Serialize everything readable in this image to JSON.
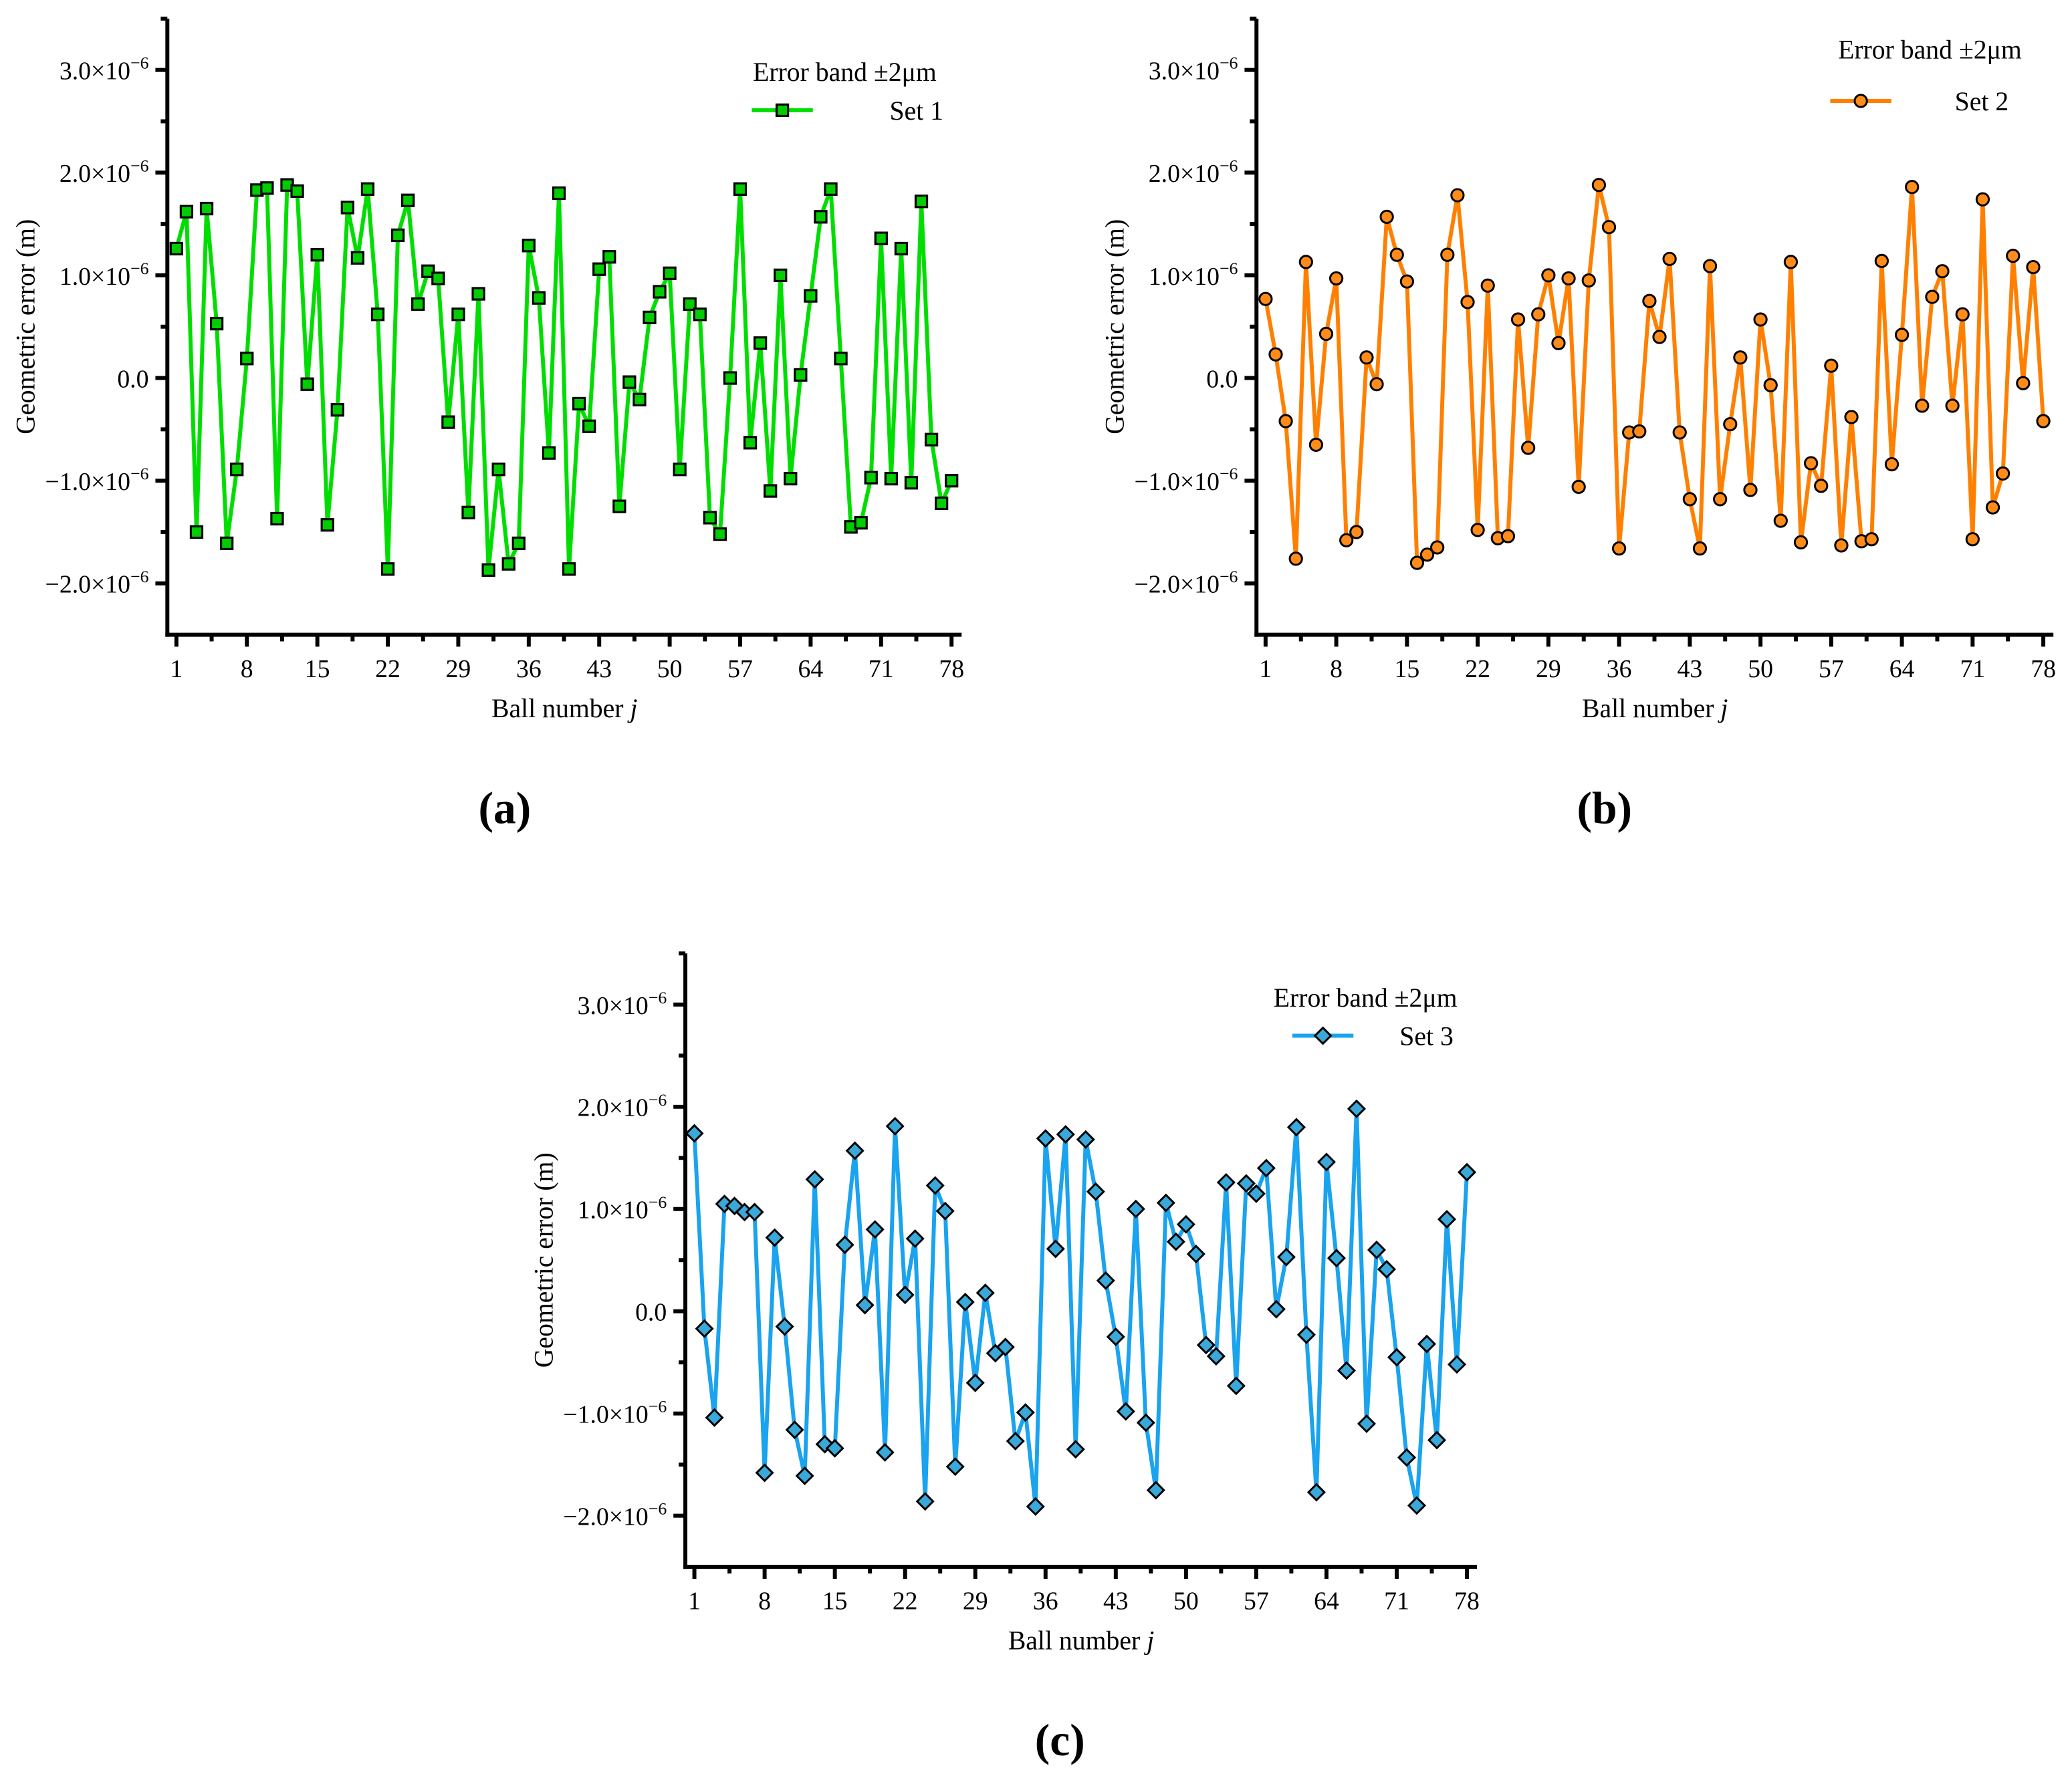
{
  "chart_data": [
    {
      "panel_label": "(a)",
      "type": "line",
      "xlabel": "Ball number",
      "xlabel_var": "j",
      "ylabel": "Geometric error (m)",
      "xlim": [
        0.1,
        79
      ],
      "ylim": [
        -2.5e-06,
        3.5e-06
      ],
      "xticks": [
        1,
        8,
        15,
        22,
        29,
        36,
        43,
        50,
        57,
        64,
        71,
        78
      ],
      "yticks": [
        {
          "value": -2e-06,
          "base": "−2.0×10",
          "exp": "−6"
        },
        {
          "value": -1e-06,
          "base": "−1.0×10",
          "exp": "−6"
        },
        {
          "value": 0,
          "base": "0.0",
          "exp": ""
        },
        {
          "value": 1e-06,
          "base": "1.0×10",
          "exp": "−6"
        },
        {
          "value": 2e-06,
          "base": "2.0×10",
          "exp": "−6"
        },
        {
          "value": 3e-06,
          "base": "3.0×10",
          "exp": "−6"
        }
      ],
      "legend_title": "Error band ±2μm",
      "legend_position": "top-right",
      "grid": false,
      "series": [
        {
          "name": "Set 1",
          "color": "#00dd00",
          "marker_fill": "#00cc00",
          "marker": "square",
          "x_start": 1,
          "values_e6": [
            1.26,
            1.62,
            -1.5,
            1.65,
            0.53,
            -1.61,
            -0.89,
            0.19,
            1.83,
            1.85,
            -1.37,
            1.88,
            1.82,
            -0.06,
            1.2,
            -1.43,
            -0.31,
            1.66,
            1.17,
            1.84,
            0.62,
            -1.86,
            1.39,
            1.73,
            0.72,
            1.04,
            0.97,
            -0.43,
            0.62,
            -1.31,
            0.82,
            -1.87,
            -0.89,
            -1.81,
            -1.61,
            1.29,
            0.78,
            -0.73,
            1.8,
            -1.86,
            -0.25,
            -0.47,
            1.06,
            1.18,
            -1.25,
            -0.04,
            -0.21,
            0.59,
            0.84,
            1.02,
            -0.89,
            0.72,
            0.62,
            -1.36,
            -1.52,
            0.0,
            1.84,
            -0.63,
            0.34,
            -1.1,
            1.0,
            -0.98,
            0.03,
            0.8,
            1.57,
            1.84,
            0.19,
            -1.45,
            -1.41,
            -0.97,
            1.36,
            -0.98,
            1.26,
            -1.02,
            1.72,
            -0.6,
            -1.22,
            -1.0
          ]
        }
      ]
    },
    {
      "panel_label": "(b)",
      "type": "line",
      "xlabel": "Ball number",
      "xlabel_var": "j",
      "ylabel": "Geometric error (m)",
      "xlim": [
        0.1,
        79
      ],
      "ylim": [
        -2.5e-06,
        3.5e-06
      ],
      "xticks": [
        1,
        8,
        15,
        22,
        29,
        36,
        43,
        50,
        57,
        64,
        71,
        78
      ],
      "yticks": [
        {
          "value": -2e-06,
          "base": "−2.0×10",
          "exp": "−6"
        },
        {
          "value": -1e-06,
          "base": "−1.0×10",
          "exp": "−6"
        },
        {
          "value": 0,
          "base": "0.0",
          "exp": ""
        },
        {
          "value": 1e-06,
          "base": "1.0×10",
          "exp": "−6"
        },
        {
          "value": 2e-06,
          "base": "2.0×10",
          "exp": "−6"
        },
        {
          "value": 3e-06,
          "base": "3.0×10",
          "exp": "−6"
        }
      ],
      "legend_title": "Error band ±2μm",
      "legend_position": "top-right",
      "grid": false,
      "series": [
        {
          "name": "Set 2",
          "color": "#ff8000",
          "marker_fill": "#ff8c1a",
          "marker": "circle",
          "x_start": 1,
          "values_e6": [
            0.77,
            0.23,
            -0.42,
            -1.76,
            1.13,
            -0.65,
            0.43,
            0.97,
            -1.58,
            -1.5,
            0.2,
            -0.06,
            1.57,
            1.2,
            0.94,
            -1.8,
            -1.72,
            -1.65,
            1.2,
            1.78,
            0.74,
            -1.48,
            0.9,
            -1.56,
            -1.54,
            0.57,
            -0.68,
            0.62,
            1.0,
            0.34,
            0.97,
            -1.06,
            0.95,
            1.88,
            1.47,
            -1.66,
            -0.53,
            -0.52,
            0.75,
            0.4,
            1.16,
            -0.53,
            -1.18,
            -1.66,
            1.09,
            -1.18,
            -0.45,
            0.2,
            -1.09,
            0.57,
            -0.07,
            -1.39,
            1.13,
            -1.6,
            -0.83,
            -1.05,
            0.12,
            -1.63,
            -0.38,
            -1.59,
            -1.57,
            1.14,
            -0.84,
            0.42,
            1.86,
            -0.27,
            0.79,
            1.04,
            -0.27,
            0.62,
            -1.57,
            1.74,
            -1.26,
            -0.93,
            1.19,
            -0.05,
            1.08,
            -0.42
          ]
        }
      ]
    },
    {
      "panel_label": "(c)",
      "type": "line",
      "xlabel": "Ball number",
      "xlabel_var": "j",
      "ylabel": "Geometric error (m)",
      "xlim": [
        0.1,
        79
      ],
      "ylim": [
        -2.5e-06,
        3.5e-06
      ],
      "xticks": [
        1,
        8,
        15,
        22,
        29,
        36,
        43,
        50,
        57,
        64,
        71,
        78
      ],
      "yticks": [
        {
          "value": -2e-06,
          "base": "−2.0×10",
          "exp": "−6"
        },
        {
          "value": -1e-06,
          "base": "−1.0×10",
          "exp": "−6"
        },
        {
          "value": 0,
          "base": "0.0",
          "exp": ""
        },
        {
          "value": 1e-06,
          "base": "1.0×10",
          "exp": "−6"
        },
        {
          "value": 2e-06,
          "base": "2.0×10",
          "exp": "−6"
        },
        {
          "value": 3e-06,
          "base": "3.0×10",
          "exp": "−6"
        }
      ],
      "legend_title": "Error band ±2μm",
      "legend_position": "top-right",
      "grid": false,
      "series": [
        {
          "name": "Set 3",
          "color": "#1aa3ee",
          "marker_fill": "#3aa8d8",
          "marker": "diamond",
          "x_start": 1,
          "values_e6": [
            1.74,
            -0.17,
            -1.04,
            1.05,
            1.03,
            0.97,
            0.97,
            -1.58,
            0.72,
            -0.15,
            -1.16,
            -1.61,
            1.29,
            -1.3,
            -1.34,
            0.65,
            1.57,
            0.06,
            0.8,
            -1.38,
            1.81,
            0.16,
            0.71,
            -1.86,
            1.23,
            0.98,
            -1.52,
            0.09,
            -0.7,
            0.18,
            -0.41,
            -0.35,
            -1.27,
            -0.99,
            -1.91,
            1.69,
            0.61,
            1.73,
            -1.35,
            1.68,
            1.17,
            0.3,
            -0.25,
            -0.98,
            1.0,
            -1.09,
            -1.75,
            1.06,
            0.68,
            0.85,
            0.56,
            -0.33,
            -0.44,
            1.26,
            -0.73,
            1.25,
            1.15,
            1.4,
            0.02,
            0.53,
            1.8,
            -0.23,
            -1.77,
            1.46,
            0.52,
            -0.58,
            1.98,
            -1.1,
            0.6,
            0.41,
            -0.45,
            -1.43,
            -1.9,
            -0.32,
            -1.26,
            0.9,
            -0.52,
            1.36
          ]
        }
      ]
    }
  ]
}
